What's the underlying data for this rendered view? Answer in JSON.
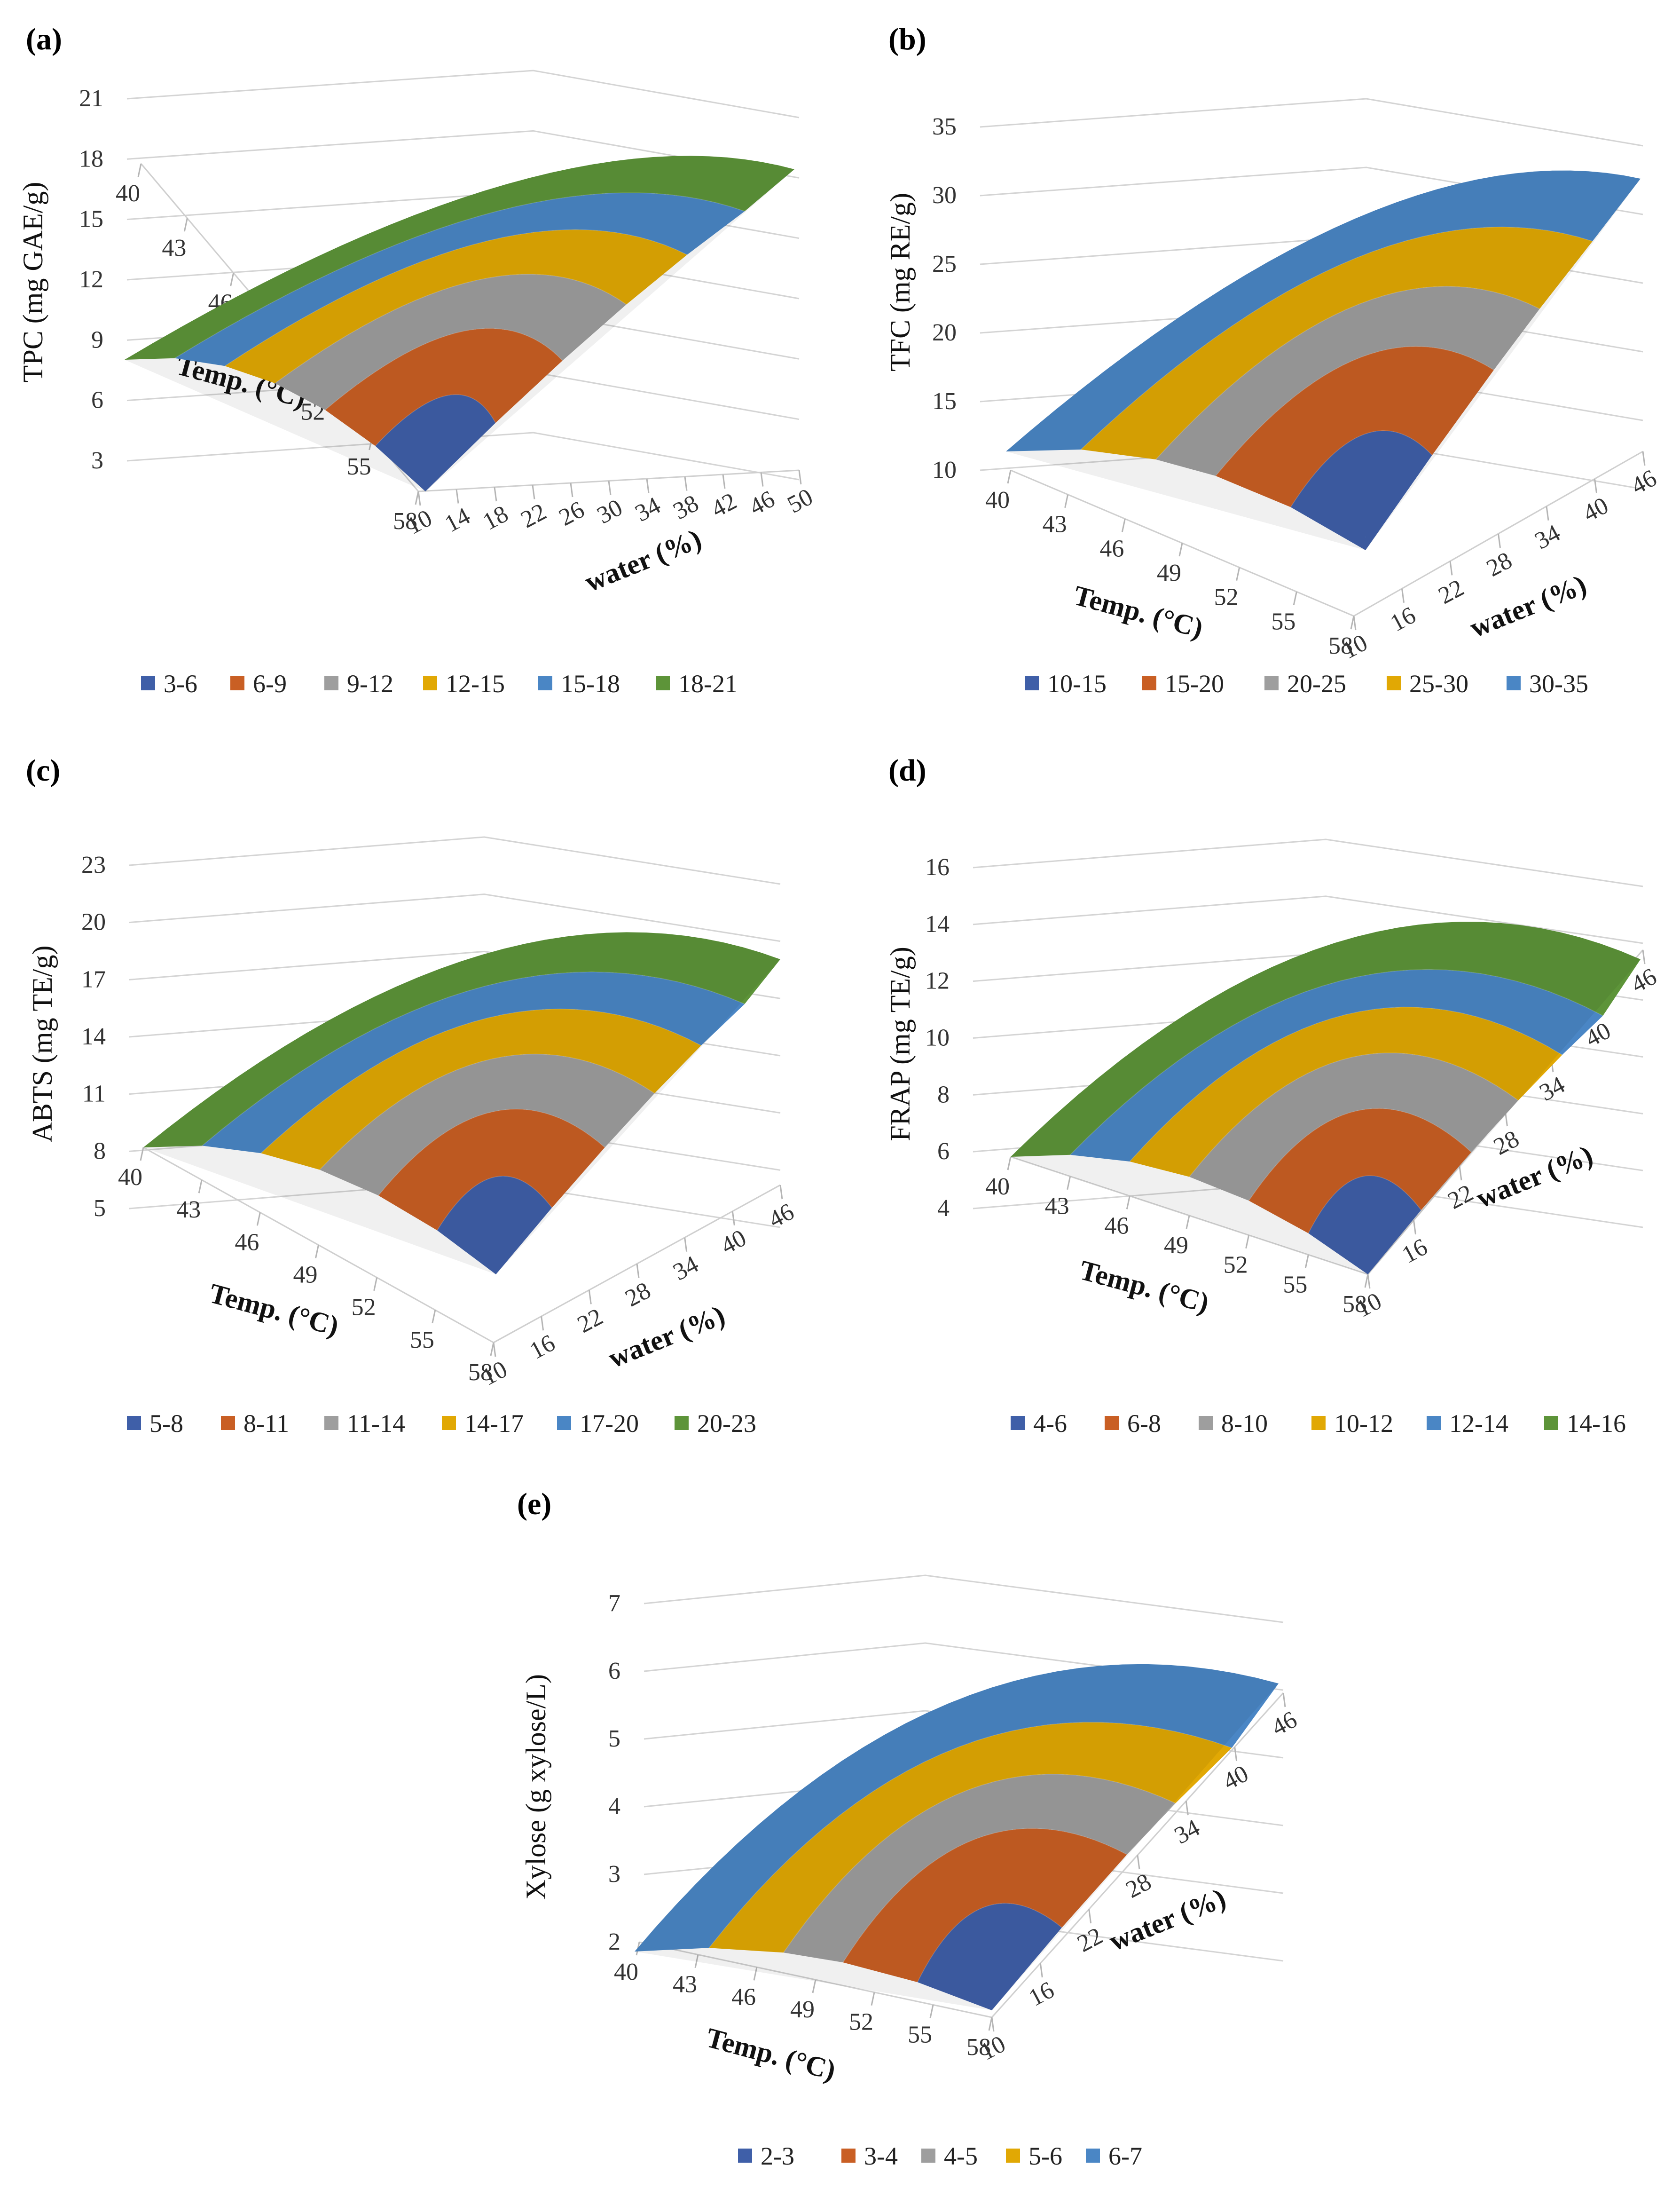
{
  "chart_data": [
    {
      "panel_label": "(a)",
      "type": "surface",
      "ylabel": "TPC (mg GAE/g)",
      "x1label": "Temp. (°C)",
      "x2label": "water (%)",
      "zticks": [
        "3",
        "6",
        "9",
        "12",
        "15",
        "18",
        "21"
      ],
      "x1ticks": [
        "40",
        "43",
        "46",
        "49",
        "52",
        "55",
        "58"
      ],
      "x2ticks": [
        "10",
        "14",
        "18",
        "22",
        "26",
        "30",
        "34",
        "38",
        "42",
        "46",
        "50"
      ],
      "zlim": [
        3,
        21
      ],
      "legend": [
        "3-6",
        "6-9",
        "9-12",
        "12-15",
        "15-18",
        "18-21"
      ],
      "colors": [
        "#3f5fa8",
        "#c95f24",
        "#9e9e9e",
        "#e1a804",
        "#4a86c5",
        "#5d9439"
      ]
    },
    {
      "panel_label": "(b)",
      "type": "surface",
      "ylabel": "TFC (mg RE/g)",
      "x1label": "Temp. (°C)",
      "x2label": "water (%)",
      "zticks": [
        "10",
        "15",
        "20",
        "25",
        "30",
        "35"
      ],
      "x1ticks": [
        "40",
        "43",
        "46",
        "49",
        "52",
        "55",
        "58"
      ],
      "x2ticks": [
        "10",
        "16",
        "22",
        "28",
        "34",
        "40",
        "46"
      ],
      "zlim": [
        10,
        35
      ],
      "legend": [
        "10-15",
        "15-20",
        "20-25",
        "25-30",
        "30-35"
      ],
      "colors": [
        "#3f5fa8",
        "#c95f24",
        "#9e9e9e",
        "#e1a804",
        "#4a86c5"
      ]
    },
    {
      "panel_label": "(c)",
      "type": "surface",
      "ylabel": "ABTS (mg TE/g)",
      "x1label": "Temp. (°C)",
      "x2label": "water (%)",
      "zticks": [
        "5",
        "8",
        "11",
        "14",
        "17",
        "20",
        "23"
      ],
      "x1ticks": [
        "40",
        "43",
        "46",
        "49",
        "52",
        "55",
        "58"
      ],
      "x2ticks": [
        "10",
        "16",
        "22",
        "28",
        "34",
        "40",
        "46"
      ],
      "zlim": [
        5,
        23
      ],
      "legend": [
        "5-8",
        "8-11",
        "11-14",
        "14-17",
        "17-20",
        "20-23"
      ],
      "colors": [
        "#3f5fa8",
        "#c95f24",
        "#9e9e9e",
        "#e1a804",
        "#4a86c5",
        "#5d9439"
      ]
    },
    {
      "panel_label": "(d)",
      "type": "surface",
      "ylabel": "FRAP (mg TE/g)",
      "x1label": "Temp. (°C)",
      "x2label": "water (%)",
      "zticks": [
        "4",
        "6",
        "8",
        "10",
        "12",
        "14",
        "16"
      ],
      "x1ticks": [
        "40",
        "43",
        "46",
        "49",
        "52",
        "55",
        "58"
      ],
      "x2ticks": [
        "10",
        "16",
        "22",
        "28",
        "34",
        "40",
        "46"
      ],
      "zlim": [
        4,
        16
      ],
      "legend": [
        "4-6",
        "6-8",
        "8-10",
        "10-12",
        "12-14",
        "14-16"
      ],
      "colors": [
        "#3f5fa8",
        "#c95f24",
        "#9e9e9e",
        "#e1a804",
        "#4a86c5",
        "#5d9439"
      ]
    },
    {
      "panel_label": "(e)",
      "type": "surface",
      "ylabel": "Xylose (g xylose/L)",
      "x1label": "Temp. (°C)",
      "x2label": "water (%)",
      "zticks": [
        "2",
        "3",
        "4",
        "5",
        "6",
        "7"
      ],
      "x1ticks": [
        "40",
        "43",
        "46",
        "49",
        "52",
        "55",
        "58"
      ],
      "x2ticks": [
        "10",
        "16",
        "22",
        "28",
        "34",
        "40",
        "46"
      ],
      "zlim": [
        2,
        7
      ],
      "legend": [
        "2-3",
        "3-4",
        "4-5",
        "5-6",
        "6-7"
      ],
      "colors": [
        "#3f5fa8",
        "#c95f24",
        "#9e9e9e",
        "#e1a804",
        "#4a86c5"
      ]
    }
  ]
}
